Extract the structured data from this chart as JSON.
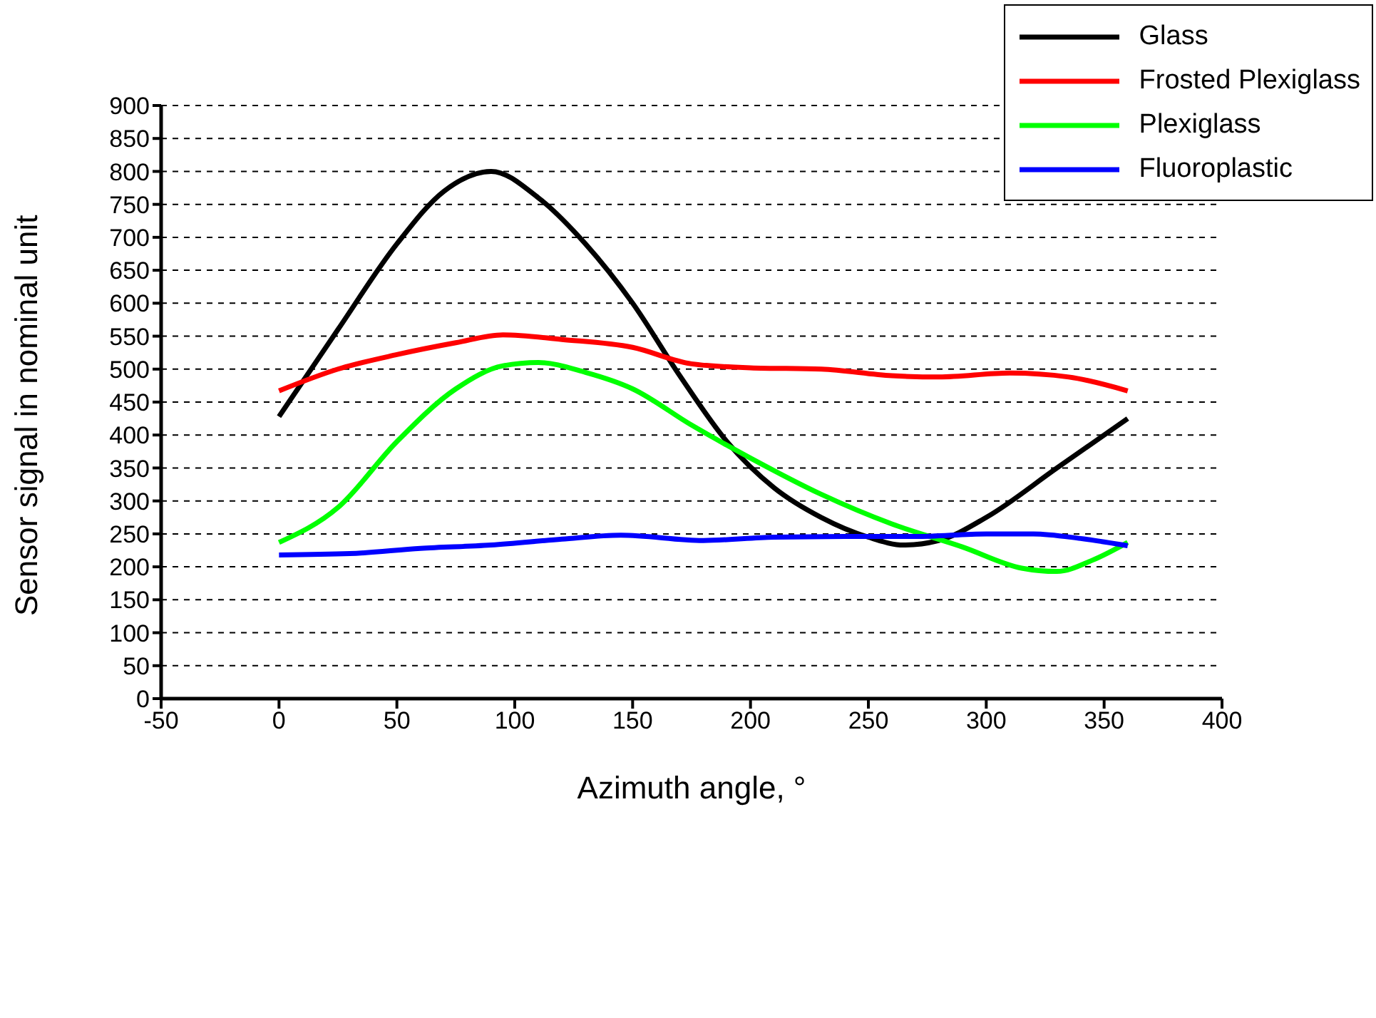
{
  "chart_data": {
    "type": "line",
    "xlabel": "Azimuth angle, °",
    "ylabel": "Sensor signal in nominal unit",
    "xlim": [
      -50,
      400
    ],
    "xticks": [
      -50,
      0,
      50,
      100,
      150,
      200,
      250,
      300,
      350,
      400
    ],
    "ylim": [
      0,
      900
    ],
    "yticks": [
      0,
      50,
      100,
      150,
      200,
      250,
      300,
      350,
      400,
      450,
      500,
      550,
      600,
      650,
      700,
      750,
      800,
      850,
      900
    ],
    "grid": "y",
    "legend": "top right",
    "marker": "none",
    "line_style": "solid",
    "series": [
      {
        "name": "Glass",
        "color": "#000000",
        "x": [
          0,
          25,
          50,
          70,
          90,
          110,
          130,
          150,
          170,
          190,
          210,
          230,
          250,
          265,
          280,
          300,
          330,
          360
        ],
        "values": [
          428,
          560,
          690,
          770,
          800,
          760,
          690,
          600,
          490,
          390,
          320,
          275,
          245,
          233,
          240,
          275,
          350,
          425
        ]
      },
      {
        "name": "Frosted Plexiglass",
        "color": "#ff0000",
        "x": [
          0,
          25,
          50,
          75,
          95,
          120,
          150,
          175,
          200,
          230,
          260,
          280,
          310,
          335,
          360
        ],
        "values": [
          467,
          500,
          522,
          540,
          552,
          545,
          533,
          508,
          502,
          500,
          490,
          488,
          494,
          488,
          467
        ]
      },
      {
        "name": "Plexiglass",
        "color": "#00ff00",
        "x": [
          0,
          25,
          50,
          75,
          95,
          110,
          130,
          150,
          175,
          200,
          230,
          260,
          290,
          315,
          330,
          345,
          360
        ],
        "values": [
          237,
          290,
          390,
          470,
          505,
          510,
          495,
          470,
          415,
          365,
          310,
          265,
          230,
          198,
          193,
          210,
          237
        ]
      },
      {
        "name": "Fluoroplastic",
        "color": "#0000ff",
        "x": [
          0,
          30,
          60,
          90,
          120,
          145,
          180,
          210,
          240,
          270,
          300,
          320,
          340,
          360
        ],
        "values": [
          218,
          220,
          228,
          233,
          242,
          248,
          240,
          245,
          246,
          246,
          250,
          250,
          243,
          232
        ]
      }
    ]
  }
}
